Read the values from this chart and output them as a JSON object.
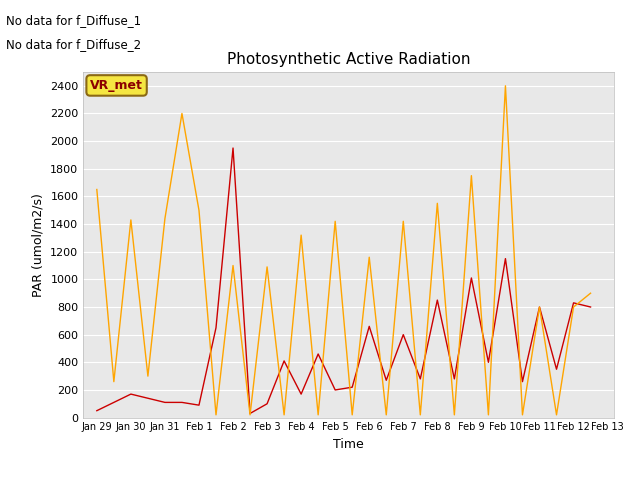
{
  "title": "Photosynthetic Active Radiation",
  "xlabel": "Time",
  "ylabel": "PAR (umol/m2/s)",
  "ylim": [
    0,
    2500
  ],
  "yticks": [
    0,
    200,
    400,
    600,
    800,
    1000,
    1200,
    1400,
    1600,
    1800,
    2000,
    2200,
    2400
  ],
  "background_color": "#e8e8e8",
  "text_annotations": [
    "No data for f_Diffuse_1",
    "No data for f_Diffuse_2"
  ],
  "vr_met_label": "VR_met",
  "par_in_color": "#cc0000",
  "par_out_color": "#ffa500",
  "xtick_labels": [
    "Jan 29",
    "Jan 30",
    "Jan 31",
    "Feb 1",
    "Feb 2",
    "Feb 3",
    "Feb 4",
    "Feb 5",
    "Feb 6",
    "Feb 7",
    "Feb 8",
    "Feb 9",
    "Feb 10",
    "Feb 11",
    "Feb 12",
    "Feb 13"
  ],
  "par_in_x": [
    0,
    1,
    2,
    2.5,
    3,
    3.5,
    4,
    4.5,
    5,
    5.5,
    6,
    6.5,
    7,
    7.5,
    8,
    8.5,
    9,
    9.5,
    10,
    10.5,
    11,
    11.5,
    12,
    12.5,
    13,
    13.5,
    14,
    14.5
  ],
  "par_in_y": [
    50,
    170,
    110,
    110,
    90,
    650,
    1950,
    30,
    100,
    410,
    170,
    460,
    200,
    220,
    660,
    270,
    600,
    280,
    850,
    280,
    1010,
    400,
    1150,
    260,
    800,
    350,
    830,
    800
  ],
  "par_out_x": [
    0,
    0.5,
    1,
    1.5,
    2,
    2.5,
    3,
    3.5,
    4,
    4.5,
    5,
    5.5,
    6,
    6.5,
    7,
    7.5,
    8,
    8.5,
    9,
    9.5,
    10,
    10.5,
    11,
    11.5,
    12,
    12.5,
    13,
    13.5,
    14,
    14.5
  ],
  "par_out_y": [
    1650,
    260,
    1430,
    300,
    1440,
    2200,
    1500,
    20,
    1100,
    20,
    1090,
    20,
    1320,
    20,
    1420,
    20,
    1160,
    20,
    1420,
    20,
    1550,
    20,
    1750,
    20,
    2400,
    20,
    800,
    20,
    800,
    900
  ]
}
